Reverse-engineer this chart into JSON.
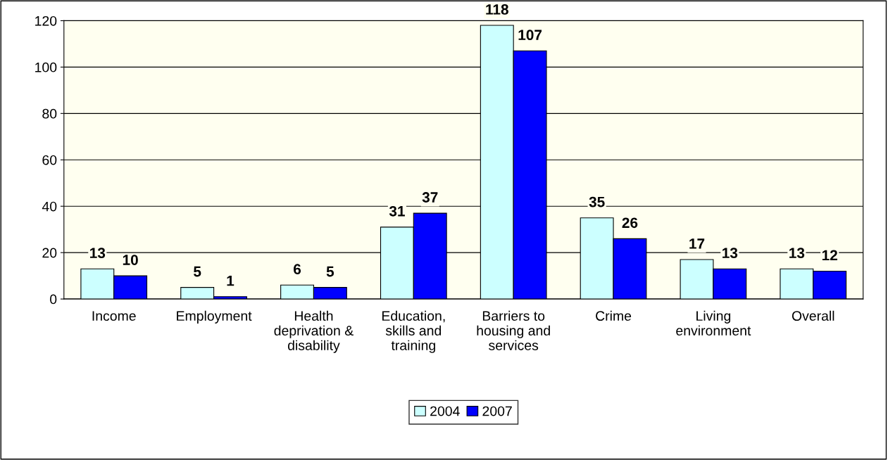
{
  "chart_data": {
    "type": "bar",
    "categories": [
      "Income",
      "Employment",
      "Health\ndeprivation &\ndisability",
      "Education,\nskills and\ntraining",
      "Barriers to\nhousing and\nservices",
      "Crime",
      "Living\nenvironment",
      "Overall"
    ],
    "series": [
      {
        "name": "2004",
        "color": "#ccffff",
        "values": [
          13,
          5,
          6,
          31,
          118,
          35,
          17,
          13
        ]
      },
      {
        "name": "2007",
        "color": "#0000ff",
        "values": [
          10,
          1,
          5,
          37,
          107,
          26,
          13,
          12
        ]
      }
    ],
    "ylim": [
      0,
      120
    ],
    "yticks": [
      0,
      20,
      40,
      60,
      80,
      100,
      120
    ],
    "grid": "y",
    "legend": "bottom",
    "data_labels": true
  }
}
